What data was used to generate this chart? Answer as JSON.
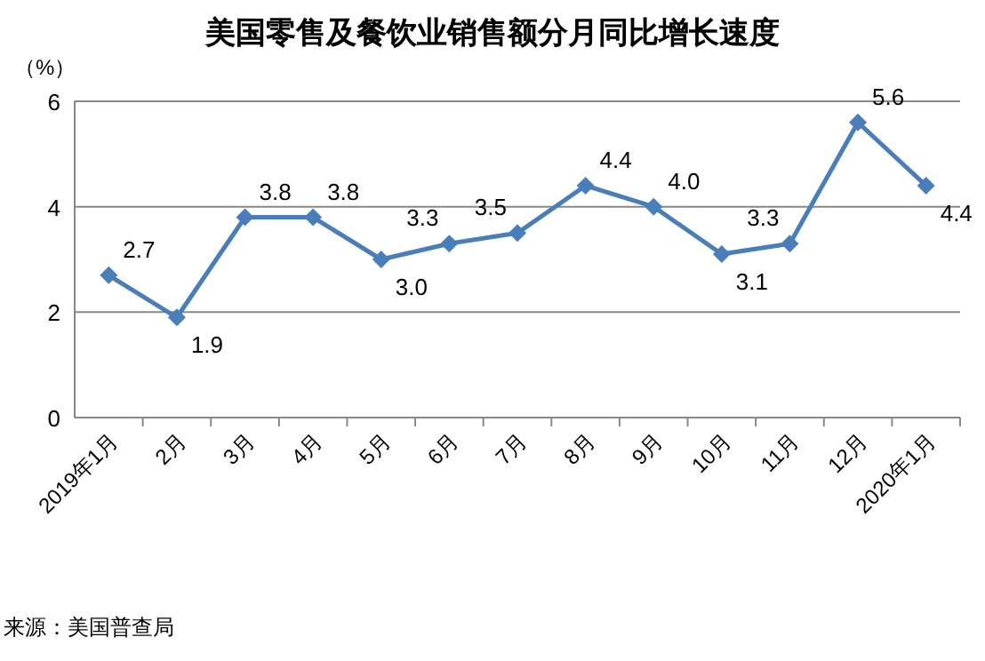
{
  "chart_data": {
    "type": "line",
    "title": "美国零售及餐饮业销售额分月同比增长速度",
    "ylabel": "（%）",
    "categories": [
      "2019年1月",
      "2月",
      "3月",
      "4月",
      "5月",
      "6月",
      "7月",
      "8月",
      "9月",
      "10月",
      "11月",
      "12月",
      "2020年1月"
    ],
    "series": [
      {
        "color": "#4a7ebb",
        "values": [
          2.7,
          1.9,
          3.8,
          3.8,
          3.0,
          3.3,
          3.5,
          4.4,
          4.0,
          3.1,
          3.3,
          5.6,
          4.4
        ],
        "value_labels": [
          "2.7",
          "1.9",
          "3.8",
          "3.8",
          "3.0",
          "3.3",
          "3.5",
          "4.4",
          "4.0",
          "3.1",
          "3.3",
          "5.6",
          "4.4"
        ]
      }
    ],
    "ylim": [
      0,
      6
    ],
    "yticks": [
      0,
      2,
      4,
      6
    ],
    "grid": "y",
    "marker": "diamond",
    "line_style": "solid",
    "annotations": [
      "来源：美国普查局"
    ]
  }
}
